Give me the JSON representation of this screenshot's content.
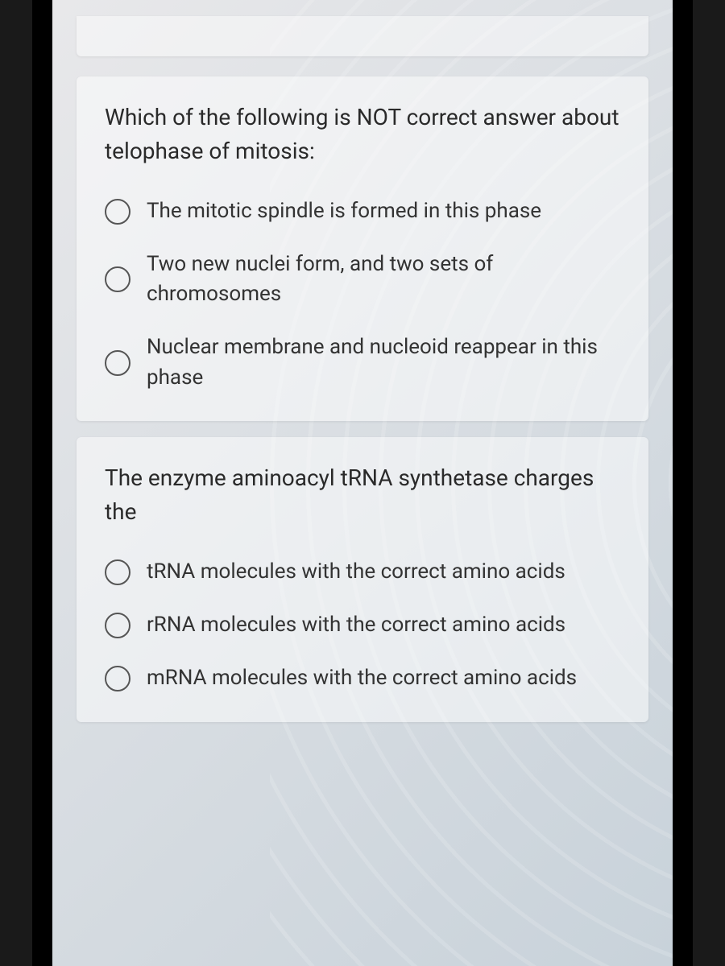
{
  "colors": {
    "background_gradient_start": "#e8e8ea",
    "background_gradient_end": "#c8d2da",
    "card_bg": "rgba(255,255,255,0.5)",
    "text_primary": "#2a2a2a",
    "text_option": "#333333",
    "radio_border": "#555555",
    "frame": "#000000"
  },
  "typography": {
    "question_fontsize": 28,
    "option_fontsize": 26,
    "line_height": 1.5
  },
  "questions": [
    {
      "prompt": "Which of the following is NOT correct answer about telophase of mitosis:",
      "options": [
        "The mitotic spindle is formed in this phase",
        "Two new nuclei form, and two sets of chromosomes",
        "Nuclear membrane and nucleoid reappear in this phase"
      ]
    },
    {
      "prompt": "The enzyme aminoacyl tRNA synthetase charges the",
      "options": [
        "tRNA molecules with the correct amino acids",
        "rRNA molecules with the correct amino acids",
        "mRNA molecules with the correct amino acids"
      ]
    }
  ]
}
